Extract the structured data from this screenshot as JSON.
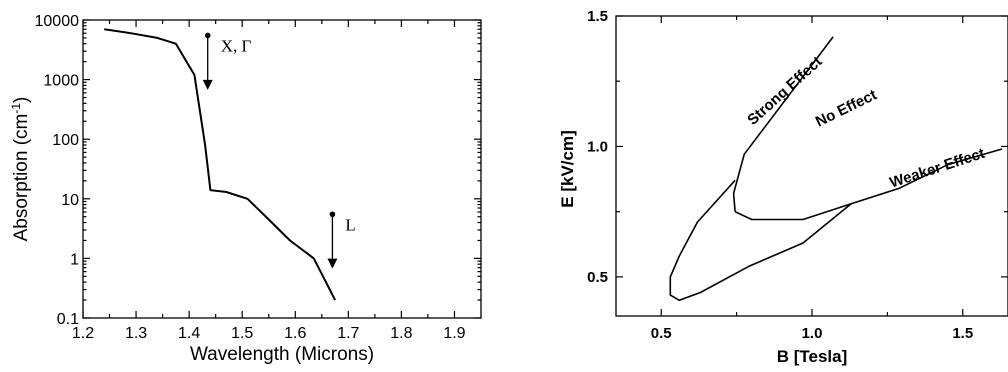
{
  "chart_data": [
    {
      "type": "line",
      "xlabel": "Wavelength (Microns)",
      "ylabel_base": "Absorption (cm",
      "ylabel_sup": "-1",
      "ylabel_end": ")",
      "xlim": [
        1.2,
        1.95
      ],
      "ylim": [
        0.1,
        10000
      ],
      "yscale": "log",
      "xticks": [
        1.2,
        1.3,
        1.4,
        1.5,
        1.6,
        1.7,
        1.8,
        1.9
      ],
      "xtick_labels": [
        "1.2",
        "1.3",
        "1.4",
        "1.5",
        "1.6",
        "1.7",
        "1.8",
        "1.9"
      ],
      "yticks": [
        0.1,
        1,
        10,
        100,
        1000,
        10000
      ],
      "ytick_labels": [
        "0.1",
        "1",
        "10",
        "100",
        "1000",
        "10000"
      ],
      "series": [
        {
          "x": [
            1.24,
            1.29,
            1.34,
            1.375,
            1.41,
            1.43,
            1.44,
            1.47,
            1.51,
            1.55,
            1.59,
            1.635,
            1.675
          ],
          "y": [
            7000,
            6000,
            5000,
            4000,
            1200,
            80,
            14,
            13,
            10,
            4.5,
            2,
            1,
            0.2
          ]
        }
      ],
      "annotations": [
        {
          "text": "X, Γ",
          "x": 1.435,
          "y_from": 5500,
          "y_to": 700
        },
        {
          "text": "L",
          "x": 1.67,
          "y_from": 5.5,
          "y_to": 0.7
        }
      ]
    },
    {
      "type": "line",
      "xlabel": "B [Tesla]",
      "ylabel": "E [kV/cm]",
      "xlim": [
        0.35,
        1.65
      ],
      "ylim": [
        0.35,
        1.5
      ],
      "xticks": [
        0.5,
        1.0,
        1.5
      ],
      "xtick_labels": [
        "0.5",
        "1.0",
        "1.5"
      ],
      "yticks": [
        0.5,
        1.0,
        1.5
      ],
      "ytick_labels": [
        "0.5",
        "1.0",
        "1.5"
      ],
      "series": [
        {
          "x": [
            0.745,
            0.74,
            0.775,
            1.07
          ],
          "y": [
            0.75,
            0.82,
            0.97,
            1.42
          ]
        },
        {
          "x": [
            0.745,
            0.8,
            0.97,
            1.13,
            1.29,
            1.45,
            1.63
          ],
          "y": [
            0.75,
            0.72,
            0.72,
            0.78,
            0.84,
            0.93,
            0.99
          ]
        },
        {
          "x": [
            0.745,
            0.62,
            0.56,
            0.53,
            0.53,
            0.56,
            0.63,
            0.79,
            0.97,
            1.13
          ],
          "y": [
            0.87,
            0.71,
            0.58,
            0.5,
            0.43,
            0.41,
            0.44,
            0.54,
            0.63,
            0.78
          ]
        }
      ],
      "regions": [
        {
          "text": "Strong Effect",
          "x": 0.92,
          "y": 1.2,
          "rotate": -42
        },
        {
          "text": "No Effect",
          "x": 1.12,
          "y": 1.13,
          "rotate": -26
        },
        {
          "text": "Weaker Effect",
          "x": 1.42,
          "y": 0.9,
          "rotate": -18
        }
      ]
    }
  ]
}
